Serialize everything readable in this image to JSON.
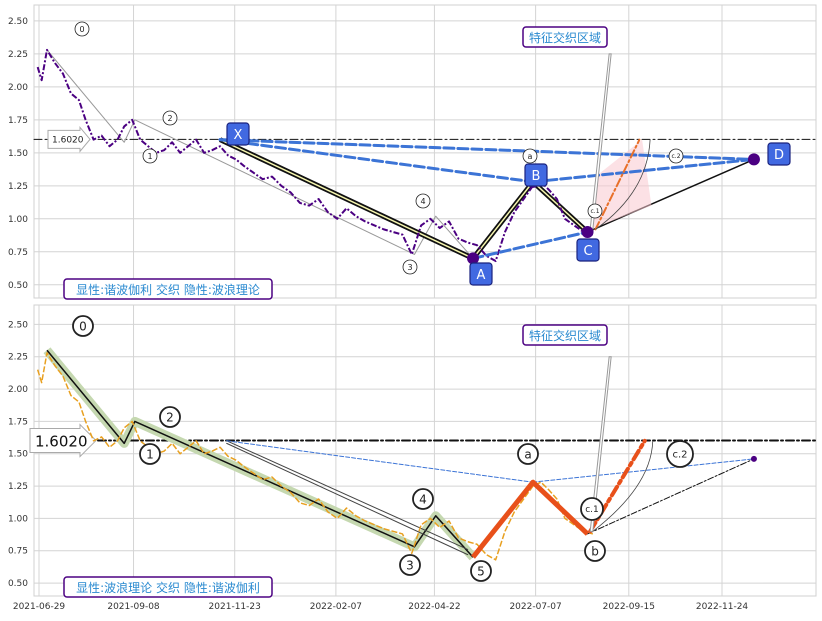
{
  "chart_data": [
    {
      "type": "line",
      "ylim": [
        0.4,
        2.62
      ],
      "yticks": [
        "2.50",
        "2.25",
        "2.00",
        "1.75",
        "1.50",
        "1.25",
        "1.00",
        "0.75",
        "0.50"
      ],
      "reference_line": {
        "y": 1.602,
        "label": "1.6020"
      },
      "grid": true,
      "series": [
        {
          "values_x": [
            "2021-07-01",
            "2021-07-04",
            "2021-07-08",
            "2021-07-14",
            "2021-07-20",
            "2021-07-26",
            "2021-08-01",
            "2021-08-06",
            "2021-08-12",
            "2021-08-18",
            "2021-08-24",
            "2021-08-30",
            "2021-09-04",
            "2021-09-10",
            "2021-09-16",
            "2021-09-22",
            "2021-09-28",
            "2021-10-04",
            "2021-10-10",
            "2021-10-16",
            "2021-10-22",
            "2021-10-28",
            "2021-11-03",
            "2021-11-09",
            "2021-11-15",
            "2021-11-21",
            "2021-11-27",
            "2021-12-03",
            "2021-12-10",
            "2021-12-17",
            "2021-12-24",
            "2021-12-31",
            "2022-01-07",
            "2022-01-14",
            "2022-01-21",
            "2022-01-28",
            "2022-02-04",
            "2022-02-11",
            "2022-02-18",
            "2022-02-25",
            "2022-03-04",
            "2022-03-11",
            "2022-03-18",
            "2022-03-25",
            "2022-04-01",
            "2022-04-08",
            "2022-04-15",
            "2022-04-22",
            "2022-04-29",
            "2022-05-06",
            "2022-05-13",
            "2022-05-20",
            "2022-05-27",
            "2022-06-03",
            "2022-06-10",
            "2022-06-17",
            "2022-06-24",
            "2022-07-01",
            "2022-07-08",
            "2022-07-14",
            "2022-07-20",
            "2022-07-26",
            "2022-08-01",
            "2022-08-08",
            "2022-08-15",
            "2022-08-22"
          ],
          "values": [
            2.15,
            2.05,
            2.28,
            2.18,
            2.1,
            1.95,
            1.9,
            1.75,
            1.6,
            1.63,
            1.55,
            1.6,
            1.7,
            1.75,
            1.6,
            1.55,
            1.5,
            1.52,
            1.58,
            1.5,
            1.55,
            1.6,
            1.5,
            1.52,
            1.55,
            1.48,
            1.45,
            1.4,
            1.35,
            1.3,
            1.32,
            1.25,
            1.2,
            1.12,
            1.1,
            1.15,
            1.05,
            1.0,
            1.08,
            1.02,
            0.98,
            0.95,
            0.92,
            0.9,
            0.88,
            0.73,
            0.95,
            1.0,
            0.93,
            0.98,
            0.85,
            0.82,
            0.8,
            0.72,
            0.68,
            0.9,
            1.05,
            1.15,
            1.25,
            1.28,
            1.22,
            1.15,
            1.0,
            0.95,
            0.9,
            0.88
          ]
        }
      ],
      "wave_labels": [
        "0",
        "1",
        "2",
        "3",
        "4",
        "a",
        "c.1",
        "c.2"
      ],
      "pattern_points": [
        {
          "label": "X",
          "date": "2021-11-15",
          "y": 1.6
        },
        {
          "label": "A",
          "date": "2022-05-24",
          "y": 0.7
        },
        {
          "label": "B",
          "date": "2022-07-08",
          "y": 1.28
        },
        {
          "label": "C",
          "date": "2022-08-18",
          "y": 0.9
        },
        {
          "label": "D",
          "date": "2022-12-21",
          "y": 1.45
        }
      ],
      "annotation": "特征交织区域",
      "caption": "显性:谐波伽利 交织 隐性:波浪理论"
    },
    {
      "type": "line",
      "ylim": [
        0.4,
        2.65
      ],
      "yticks": [
        "2.50",
        "2.25",
        "2.00",
        "1.75",
        "1.50",
        "1.25",
        "1.00",
        "0.75",
        "0.50"
      ],
      "xticks": [
        "2021-06-29",
        "2021-09-08",
        "2021-11-23",
        "2022-02-07",
        "2022-04-22",
        "2022-07-07",
        "2022-09-15",
        "2022-11-24"
      ],
      "reference_line": {
        "y": 1.602,
        "label": "1.6020"
      },
      "grid": true,
      "wave_labels": [
        "0",
        "1",
        "2",
        "3",
        "4",
        "5",
        "a",
        "b",
        "c.1",
        "c.2"
      ],
      "annotation": "特征交织区域",
      "caption": "显性:波浪理论 交织 隐性:谐波伽利"
    }
  ],
  "colors": {
    "purple": "#4b0082",
    "orange": "#e8a020",
    "blue": "#3c74d6",
    "red_orange": "#e8501a",
    "label_box": "#4169e1"
  }
}
